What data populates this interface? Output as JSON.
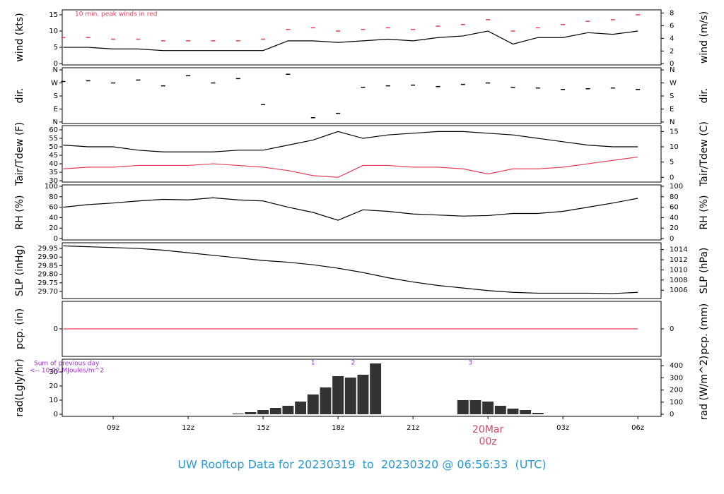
{
  "title": "UW Rooftop Data for 20230319  to  20230320 @ 06:56:33  (UTC)",
  "chart_data": [
    {
      "type": "line",
      "ylabel": "wind (kts)",
      "y2label": "wind (m/s)",
      "annotation": "10 min. peak winds in red",
      "xlim": [
        6.96,
        30.93
      ],
      "ylim": [
        -0.4,
        16.5
      ],
      "yticks": [
        0,
        5,
        10,
        15
      ],
      "y2lim": [
        -0.2,
        8.49
      ],
      "y2ticks": [
        0,
        2,
        4,
        6,
        8
      ],
      "x": [
        7,
        8,
        9,
        10,
        11,
        12,
        13,
        14,
        15,
        16,
        17,
        18,
        19,
        20,
        21,
        22,
        23,
        24,
        25,
        26,
        27,
        28,
        29,
        30
      ],
      "series": [
        {
          "color": "#000000",
          "values": [
            5,
            5,
            4.5,
            4.5,
            4,
            4,
            4,
            4,
            4,
            7,
            7,
            6.5,
            7,
            7.5,
            7,
            8,
            8.5,
            10,
            6,
            8,
            8,
            9.5,
            9,
            10
          ]
        },
        {
          "color": "#e0405a",
          "marker": "dash",
          "values": [
            8,
            8,
            7.5,
            7.5,
            7,
            7,
            7,
            7,
            7.5,
            10.5,
            11,
            10,
            10.5,
            11,
            10.5,
            11.5,
            12,
            13.5,
            10,
            11,
            12,
            13,
            13.5,
            15
          ]
        }
      ]
    },
    {
      "type": "scatter",
      "ylabel": "dir.",
      "y2label": "dir.",
      "xlim": [
        6.96,
        30.93
      ],
      "ylim": [
        -10,
        375
      ],
      "yticks": [
        {
          "value": 0,
          "label": "N"
        },
        {
          "value": 90,
          "label": "E"
        },
        {
          "value": 180,
          "label": "S"
        },
        {
          "value": 270,
          "label": "W"
        },
        {
          "value": 360,
          "label": "N"
        }
      ],
      "y2lim": [
        -10,
        375
      ],
      "y2ticks": [
        {
          "value": 0,
          "label": "N"
        },
        {
          "value": 90,
          "label": "E"
        },
        {
          "value": 180,
          "label": "S"
        },
        {
          "value": 270,
          "label": "W"
        },
        {
          "value": 360,
          "label": "N"
        }
      ],
      "x": [
        7,
        8,
        9,
        10,
        11,
        12,
        13,
        14,
        15,
        16,
        17,
        18,
        19,
        20,
        21,
        22,
        23,
        24,
        25,
        26,
        27,
        28,
        29,
        30
      ],
      "series": [
        {
          "color": "#000000",
          "marker": "dash",
          "values": [
            280,
            285,
            270,
            290,
            250,
            320,
            270,
            300,
            120,
            330,
            30,
            60,
            240,
            250,
            255,
            245,
            260,
            270,
            240,
            235,
            225,
            230,
            235,
            225
          ]
        }
      ]
    },
    {
      "type": "line",
      "ylabel": "Tair/Tdew (F)",
      "y2label": "Tair/Tdew (C)",
      "xlim": [
        6.96,
        30.93
      ],
      "ylim": [
        29.2,
        62.5
      ],
      "yticks": [
        30,
        35,
        40,
        45,
        50,
        55,
        60
      ],
      "y2lim": [
        -1.56,
        16.94
      ],
      "y2ticks": [
        0,
        5,
        10,
        15
      ],
      "x": [
        7,
        8,
        9,
        10,
        11,
        12,
        13,
        14,
        15,
        16,
        17,
        18,
        19,
        20,
        21,
        22,
        23,
        24,
        25,
        26,
        27,
        28,
        29,
        30
      ],
      "series": [
        {
          "color": "#000000",
          "values": [
            51,
            50,
            50,
            48,
            47,
            47,
            47,
            48,
            48,
            51,
            54,
            59,
            55,
            57,
            58,
            59,
            59,
            58,
            57,
            55,
            53,
            51,
            50,
            50
          ]
        },
        {
          "color": "#e0405a",
          "values": [
            37,
            38,
            38,
            39,
            39,
            39,
            40,
            39,
            38,
            36,
            33,
            32,
            39,
            39,
            38,
            38,
            37,
            34,
            37,
            37,
            38,
            40,
            42,
            44
          ]
        }
      ]
    },
    {
      "type": "line",
      "ylabel": "RH (%)",
      "y2label": "RH (%)",
      "xlim": [
        6.96,
        30.93
      ],
      "ylim": [
        -2.7,
        102.7
      ],
      "yticks": [
        0,
        20,
        40,
        60,
        80,
        100
      ],
      "y2lim": [
        -2.7,
        102.7
      ],
      "y2ticks": [
        0,
        20,
        40,
        60,
        80,
        100
      ],
      "x": [
        7,
        8,
        9,
        10,
        11,
        12,
        13,
        14,
        15,
        16,
        17,
        18,
        19,
        20,
        21,
        22,
        23,
        24,
        25,
        26,
        27,
        28,
        29,
        30
      ],
      "series": [
        {
          "color": "#000000",
          "values": [
            60,
            65,
            68,
            72,
            75,
            74,
            78,
            74,
            72,
            60,
            50,
            35,
            55,
            52,
            47,
            45,
            43,
            44,
            48,
            48,
            52,
            60,
            68,
            77
          ]
        }
      ]
    },
    {
      "type": "line",
      "ylabel": "SLP (inHg)",
      "y2label": "SLP (hPa)",
      "xlim": [
        6.96,
        30.93
      ],
      "ylim": [
        29.659,
        29.983
      ],
      "yticks": [
        {
          "value": 29.7,
          "label": "29.70"
        },
        29.75,
        {
          "value": 29.8,
          "label": "29.80"
        },
        29.85,
        {
          "value": 29.9,
          "label": "29.90"
        },
        29.95
      ],
      "y2lim": [
        1004.36,
        1015.34
      ],
      "y2ticks": [
        1006,
        1008,
        1010,
        1012,
        1014
      ],
      "x": [
        7,
        8,
        9,
        10,
        11,
        12,
        13,
        14,
        15,
        16,
        17,
        18,
        19,
        20,
        21,
        22,
        23,
        24,
        25,
        26,
        27,
        28,
        29,
        30
      ],
      "series": [
        {
          "color": "#000000",
          "values": [
            29.965,
            29.96,
            29.955,
            29.95,
            29.94,
            29.925,
            29.91,
            29.895,
            29.88,
            29.87,
            29.855,
            29.835,
            29.81,
            29.78,
            29.755,
            29.735,
            29.72,
            29.705,
            29.695,
            29.69,
            29.69,
            29.69,
            29.688,
            29.695
          ]
        }
      ]
    },
    {
      "type": "line",
      "ylabel": "pcp. (in)",
      "y2label": "pcp. (mm)",
      "xlim": [
        6.96,
        30.93
      ],
      "ylim": [
        -1,
        1
      ],
      "yticks": [
        0
      ],
      "y2lim": [
        -1,
        1
      ],
      "y2ticks": [
        0
      ],
      "x": [
        7,
        8,
        9,
        10,
        11,
        12,
        13,
        14,
        15,
        16,
        17,
        18,
        19,
        20,
        21,
        22,
        23,
        24,
        25,
        26,
        27,
        28,
        29,
        30
      ],
      "series": [
        {
          "color": "#e0405a",
          "values": [
            0,
            0,
            0,
            0,
            0,
            0,
            0,
            0,
            0,
            0,
            0,
            0,
            0,
            0,
            0,
            0,
            0,
            0,
            0,
            0,
            0,
            0,
            0,
            0
          ]
        }
      ]
    },
    {
      "type": "bar",
      "ylabel": "rad(Lgly/hr)",
      "y2label": "rad (W/m^2)",
      "xlim": [
        6.96,
        30.93
      ],
      "ylim": [
        -1.5,
        39
      ],
      "yticks": [
        0,
        10,
        20,
        30
      ],
      "y2lim": [
        -17.4,
        453.6
      ],
      "y2ticks": [
        0,
        100,
        200,
        300,
        400
      ],
      "annotations": [
        "Sum of previous day",
        "<-- 10.02 MJoules/m^2"
      ],
      "events": [
        {
          "label": "1",
          "x": 17
        },
        {
          "label": "2",
          "x": 18.6
        },
        {
          "label": "3",
          "x": 23.3
        }
      ],
      "xticks": [
        {
          "value": 9,
          "label": "09z"
        },
        {
          "value": 12,
          "label": "12z"
        },
        {
          "value": 15,
          "label": "15z"
        },
        {
          "value": 18,
          "label": "18z"
        },
        {
          "value": 21,
          "label": "21z"
        },
        {
          "value": 24,
          "label": "00z"
        },
        {
          "value": 27,
          "label": "03z"
        },
        {
          "value": 30,
          "label": "06z"
        }
      ],
      "date_label": {
        "text": "20Mar",
        "x": 24
      },
      "x": [
        14,
        14.5,
        15,
        15.5,
        16,
        16.5,
        17,
        17.5,
        18,
        18.5,
        19,
        19.5,
        20,
        20.5,
        21,
        21.5,
        22,
        22.5,
        23,
        23.5,
        24,
        24.5,
        25,
        25.5,
        26,
        26.5
      ],
      "series": [
        {
          "color": "#333333",
          "values": [
            0.5,
            1.5,
            3,
            4.5,
            6,
            9,
            14,
            19,
            27,
            26,
            28,
            36,
            0,
            0,
            0,
            0,
            0,
            0,
            10,
            10,
            9,
            6,
            4,
            3,
            1,
            0
          ]
        }
      ]
    }
  ]
}
